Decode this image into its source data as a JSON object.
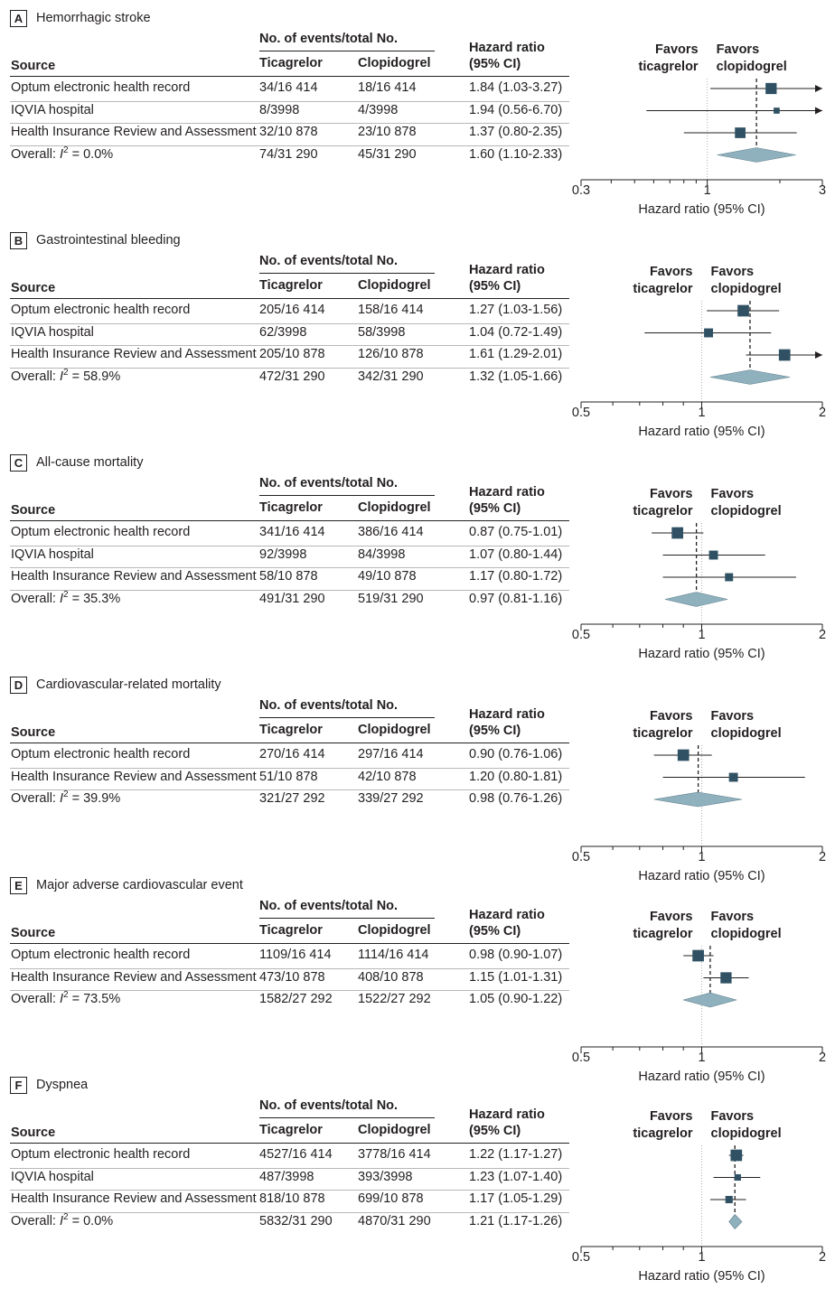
{
  "header": {
    "events_label": "No. of events/total No.",
    "source_label": "Source",
    "ticagrelor_label": "Ticagrelor",
    "clopidogrel_label": "Clopidogrel",
    "hr_label_1": "Hazard ratio",
    "hr_label_2": "(95% CI)",
    "favors_left_1": "Favors",
    "favors_left_2": "ticagrelor",
    "favors_right_1": "Favors",
    "favors_right_2": "clopidogrel",
    "axis_title": "Hazard ratio (95% CI)"
  },
  "colors": {
    "square": "#2f5163",
    "diamond": "#8fb1bd",
    "line": "#231f20",
    "ref": "#b0b0b0"
  },
  "chart_data": [
    {
      "type": "forest",
      "letter": "A",
      "title": "Hemorrhagic stroke",
      "axis_ticks": [
        0.3,
        1,
        3
      ],
      "axis_tick_labels": [
        "0.3",
        "1",
        "3"
      ],
      "xlim": [
        0.3,
        3
      ],
      "scale": "log",
      "rows": [
        {
          "source": "Optum electronic health record",
          "ticagrelor": "34/16 414",
          "clopidogrel": "18/16 414",
          "hr_text": "1.84 (1.03-3.27)",
          "hr": 1.84,
          "lo": 1.03,
          "hi": 3.27,
          "weight": 0.52
        },
        {
          "source": "IQVIA hospital",
          "ticagrelor": "8/3998",
          "clopidogrel": "4/3998",
          "hr_text": "1.94 (0.56-6.70)",
          "hr": 1.94,
          "lo": 0.56,
          "hi": 6.7,
          "weight": 0.12
        },
        {
          "source": "Health Insurance Review and Assessment",
          "ticagrelor": "32/10 878",
          "clopidogrel": "23/10 878",
          "hr_text": "1.37 (0.80-2.35)",
          "hr": 1.37,
          "lo": 0.8,
          "hi": 2.35,
          "weight": 0.48
        }
      ],
      "overall": {
        "label_prefix": "Overall: ",
        "i2_symbol": "I",
        "i2_sup": "2",
        "i2_text": " = 0.0%",
        "ticagrelor": "74/31 290",
        "clopidogrel": "45/31 290",
        "hr_text": "1.60 (1.10-2.33)",
        "hr": 1.6,
        "lo": 1.1,
        "hi": 2.33
      }
    },
    {
      "type": "forest",
      "letter": "B",
      "title": "Gastrointestinal bleeding",
      "axis_ticks": [
        0.5,
        1,
        2
      ],
      "axis_tick_labels": [
        "0.5",
        "1",
        "2"
      ],
      "xlim": [
        0.5,
        2
      ],
      "scale": "log",
      "rows": [
        {
          "source": "Optum electronic health record",
          "ticagrelor": "205/16 414",
          "clopidogrel": "158/16 414",
          "hr_text": "1.27 (1.03-1.56)",
          "hr": 1.27,
          "lo": 1.03,
          "hi": 1.56,
          "weight": 0.55
        },
        {
          "source": "IQVIA hospital",
          "ticagrelor": "62/3998",
          "clopidogrel": "58/3998",
          "hr_text": "1.04 (0.72-1.49)",
          "hr": 1.04,
          "lo": 0.72,
          "hi": 1.49,
          "weight": 0.35
        },
        {
          "source": "Health Insurance Review and Assessment",
          "ticagrelor": "205/10 878",
          "clopidogrel": "126/10 878",
          "hr_text": "1.61 (1.29-2.01)",
          "hr": 1.61,
          "lo": 1.29,
          "hi": 2.01,
          "weight": 0.55
        }
      ],
      "overall": {
        "label_prefix": "Overall: ",
        "i2_symbol": "I",
        "i2_sup": "2",
        "i2_text": " = 58.9%",
        "ticagrelor": "472/31 290",
        "clopidogrel": "342/31 290",
        "hr_text": "1.32 (1.05-1.66)",
        "hr": 1.32,
        "lo": 1.05,
        "hi": 1.66
      }
    },
    {
      "type": "forest",
      "letter": "C",
      "title": "All-cause mortality",
      "axis_ticks": [
        0.5,
        1,
        2
      ],
      "axis_tick_labels": [
        "0.5",
        "1",
        "2"
      ],
      "xlim": [
        0.5,
        2
      ],
      "scale": "log",
      "rows": [
        {
          "source": "Optum electronic health record",
          "ticagrelor": "341/16 414",
          "clopidogrel": "386/16 414",
          "hr_text": "0.87 (0.75-1.01)",
          "hr": 0.87,
          "lo": 0.75,
          "hi": 1.01,
          "weight": 0.55
        },
        {
          "source": "IQVIA hospital",
          "ticagrelor": "92/3998",
          "clopidogrel": "84/3998",
          "hr_text": "1.07 (0.80-1.44)",
          "hr": 1.07,
          "lo": 0.8,
          "hi": 1.44,
          "weight": 0.35
        },
        {
          "source": "Health Insurance Review and Assessment",
          "ticagrelor": "58/10 878",
          "clopidogrel": "49/10 878",
          "hr_text": "1.17 (0.80-1.72)",
          "hr": 1.17,
          "lo": 0.8,
          "hi": 1.72,
          "weight": 0.28
        }
      ],
      "overall": {
        "label_prefix": "Overall: ",
        "i2_symbol": "I",
        "i2_sup": "2",
        "i2_text": " = 35.3%",
        "ticagrelor": "491/31 290",
        "clopidogrel": "519/31 290",
        "hr_text": "0.97 (0.81-1.16)",
        "hr": 0.97,
        "lo": 0.81,
        "hi": 1.16
      }
    },
    {
      "type": "forest",
      "letter": "D",
      "title": "Cardiovascular-related mortality",
      "axis_ticks": [
        0.5,
        1,
        2
      ],
      "axis_tick_labels": [
        "0.5",
        "1",
        "2"
      ],
      "xlim": [
        0.5,
        2
      ],
      "scale": "log",
      "rows": [
        {
          "source": "Optum electronic health record",
          "ticagrelor": "270/16 414",
          "clopidogrel": "297/16 414",
          "hr_text": "0.90 (0.76-1.06)",
          "hr": 0.9,
          "lo": 0.76,
          "hi": 1.06,
          "weight": 0.55
        },
        {
          "source": "Health Insurance Review and Assessment",
          "ticagrelor": "51/10 878",
          "clopidogrel": "42/10 878",
          "hr_text": "1.20 (0.80-1.81)",
          "hr": 1.2,
          "lo": 0.8,
          "hi": 1.81,
          "weight": 0.35
        }
      ],
      "overall": {
        "label_prefix": "Overall: ",
        "i2_symbol": "I",
        "i2_sup": "2",
        "i2_text": " = 39.9%",
        "ticagrelor": "321/27 292",
        "clopidogrel": "339/27 292",
        "hr_text": "0.98 (0.76-1.26)",
        "hr": 0.98,
        "lo": 0.76,
        "hi": 1.26
      }
    },
    {
      "type": "forest",
      "letter": "E",
      "title": "Major adverse cardiovascular event",
      "axis_ticks": [
        0.5,
        1,
        2
      ],
      "axis_tick_labels": [
        "0.5",
        "1",
        "2"
      ],
      "xlim": [
        0.5,
        2
      ],
      "scale": "log",
      "rows": [
        {
          "source": "Optum electronic health record",
          "ticagrelor": "1109/16 414",
          "clopidogrel": "1114/16 414",
          "hr_text": "0.98 (0.90-1.07)",
          "hr": 0.98,
          "lo": 0.9,
          "hi": 1.07,
          "weight": 0.55
        },
        {
          "source": "Health Insurance Review and Assessment",
          "ticagrelor": "473/10 878",
          "clopidogrel": "408/10 878",
          "hr_text": "1.15 (1.01-1.31)",
          "hr": 1.15,
          "lo": 1.01,
          "hi": 1.31,
          "weight": 0.52
        }
      ],
      "overall": {
        "label_prefix": "Overall: ",
        "i2_symbol": "I",
        "i2_sup": "2",
        "i2_text": " = 73.5%",
        "ticagrelor": "1582/27 292",
        "clopidogrel": "1522/27 292",
        "hr_text": "1.05 (0.90-1.22)",
        "hr": 1.05,
        "lo": 0.9,
        "hi": 1.22
      }
    },
    {
      "type": "forest",
      "letter": "F",
      "title": "Dyspnea",
      "axis_ticks": [
        0.5,
        1,
        2
      ],
      "axis_tick_labels": [
        "0.5",
        "1",
        "2"
      ],
      "xlim": [
        0.5,
        2
      ],
      "scale": "log",
      "rows": [
        {
          "source": "Optum electronic health record",
          "ticagrelor": "4527/16 414",
          "clopidogrel": "3778/16 414",
          "hr_text": "1.22 (1.17-1.27)",
          "hr": 1.22,
          "lo": 1.17,
          "hi": 1.27,
          "weight": 0.55
        },
        {
          "source": "IQVIA hospital",
          "ticagrelor": "487/3998",
          "clopidogrel": "393/3998",
          "hr_text": "1.23 (1.07-1.40)",
          "hr": 1.23,
          "lo": 1.07,
          "hi": 1.4,
          "weight": 0.15
        },
        {
          "source": "Health Insurance Review and Assessment",
          "ticagrelor": "818/10 878",
          "clopidogrel": "699/10 878",
          "hr_text": "1.17 (1.05-1.29)",
          "hr": 1.17,
          "lo": 1.05,
          "hi": 1.29,
          "weight": 0.22
        }
      ],
      "overall": {
        "label_prefix": "Overall: ",
        "i2_symbol": "I",
        "i2_sup": "2",
        "i2_text": " = 0.0%",
        "ticagrelor": "5832/31 290",
        "clopidogrel": "4870/31 290",
        "hr_text": "1.21 (1.17-1.26)",
        "hr": 1.21,
        "lo": 1.17,
        "hi": 1.26
      }
    }
  ]
}
